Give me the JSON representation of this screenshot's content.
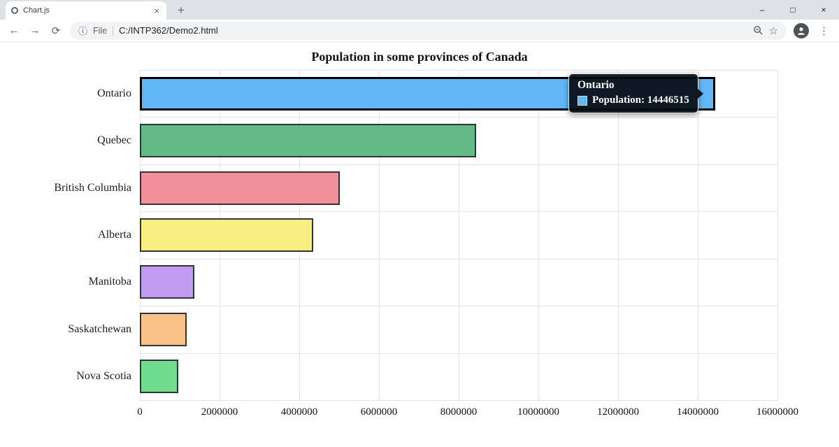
{
  "browser": {
    "tab": {
      "title": "Chart.js",
      "close_glyph": "×"
    },
    "new_tab_glyph": "+",
    "window_controls": {
      "minimize": "–",
      "maximize": "□",
      "close": "×"
    },
    "toolbar": {
      "back_glyph": "←",
      "forward_glyph": "→",
      "refresh_glyph": "⟳",
      "info_glyph": "ⓘ",
      "scheme_label": "File",
      "url": "C:/INTP362/Demo2.html",
      "bookmark_glyph": "☆",
      "menu_glyph": "⋮"
    }
  },
  "chart_data": {
    "type": "bar",
    "orientation": "horizontal",
    "title": "Population in some provinces of Canada",
    "xlabel": "",
    "ylabel": "",
    "categories": [
      "Ontario",
      "Quebec",
      "British Columbia",
      "Alberta",
      "Manitoba",
      "Saskatchewan",
      "Nova Scotia"
    ],
    "series": [
      {
        "name": "Population",
        "values": [
          14446515,
          8433301,
          5020302,
          4345737,
          1360396,
          1168423,
          964693
        ]
      }
    ],
    "bar_colors": [
      "#62b8f7",
      "#63ba86",
      "#f1909a",
      "#f8ee81",
      "#c09bf0",
      "#fac289",
      "#6fdc8f"
    ],
    "xlim": [
      0,
      16000000
    ],
    "x_ticks": [
      0,
      2000000,
      4000000,
      6000000,
      8000000,
      10000000,
      12000000,
      14000000,
      16000000
    ],
    "grid": true,
    "legend": false,
    "highlighted_index": 0
  },
  "tooltip": {
    "title": "Ontario",
    "label": "Population: 14446515",
    "swatch_color": "#62b8f7"
  }
}
